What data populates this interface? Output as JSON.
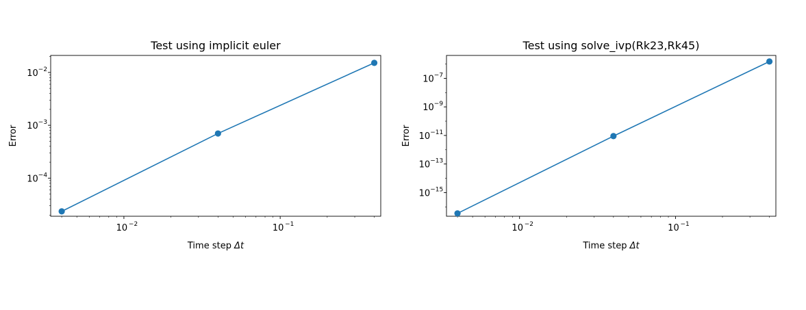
{
  "chart_data": [
    {
      "type": "line",
      "title": "Test using implicit euler",
      "xlabel": "Time step",
      "xlabel_symbol": "Δt",
      "ylabel": "Error",
      "xscale": "log",
      "yscale": "log",
      "xlim": [
        0.0034,
        0.44
      ],
      "ylim": [
        1.9e-05,
        0.021
      ],
      "x_major_exponents": [
        -2,
        -1
      ],
      "y_major_exponents": [
        -4,
        -3,
        -2
      ],
      "grid": false,
      "color": "#1f77b4",
      "series": [
        {
          "x": [
            0.004,
            0.04,
            0.4
          ],
          "y": [
            2.35e-05,
            0.0007,
            0.0152
          ]
        }
      ]
    },
    {
      "type": "line",
      "title": "Test using solve_ivp(Rk23,Rk45)",
      "xlabel": "Time step",
      "xlabel_symbol": "Δt",
      "ylabel": "Error",
      "xscale": "log",
      "yscale": "log",
      "xlim": [
        0.0034,
        0.44
      ],
      "ylim": [
        2.2e-17,
        4e-06
      ],
      "x_major_exponents": [
        -2,
        -1
      ],
      "y_major_exponents": [
        -15,
        -13,
        -11,
        -9,
        -7
      ],
      "grid": false,
      "color": "#1f77b4",
      "series": [
        {
          "x": [
            0.004,
            0.04,
            0.4
          ],
          "y": [
            3.5e-17,
            9e-12,
            1.5e-06
          ]
        }
      ]
    }
  ]
}
